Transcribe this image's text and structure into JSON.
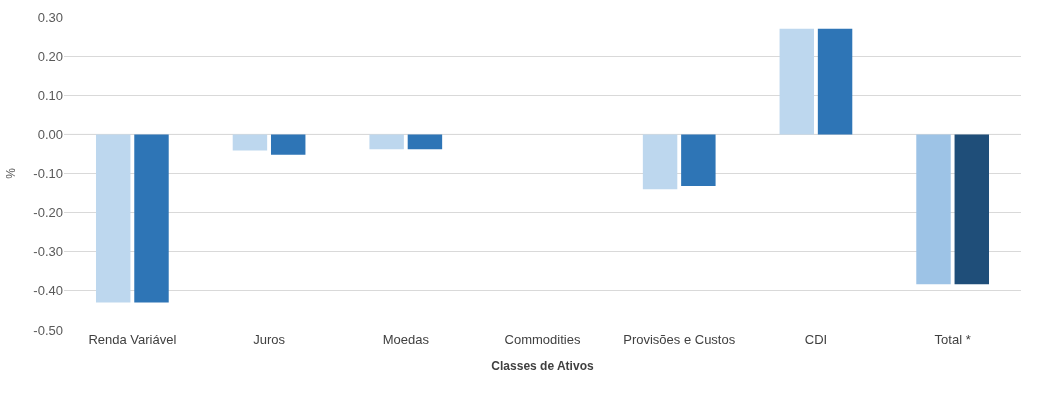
{
  "chart_data": {
    "type": "bar",
    "xlabel": "Classes de Ativos",
    "ylabel": "%",
    "categories": [
      "Renda Variável",
      "Juros",
      "Moedas",
      "Commodities",
      "Provisões e Custos",
      "CDI",
      "Total *"
    ],
    "series": [
      {
        "colors": [
          "#bdd7ee",
          "#bdd7ee",
          "#bdd7ee",
          "#bdd7ee",
          "#bdd7ee",
          "#bdd7ee",
          "#9dc3e6"
        ],
        "values": [
          -0.43,
          -0.041,
          -0.038,
          0,
          -0.14,
          0.27,
          -0.383
        ]
      },
      {
        "colors": [
          "#2e75b6",
          "#2e75b6",
          "#2e75b6",
          "#2e75b6",
          "#2e75b6",
          "#2e75b6",
          "#1f4e79"
        ],
        "values": [
          -0.43,
          -0.052,
          -0.038,
          0,
          -0.132,
          0.27,
          -0.383
        ]
      }
    ],
    "ylim": [
      -0.5,
      0.3
    ],
    "yticks": [
      {
        "value": -0.5,
        "label": "-0.50"
      },
      {
        "value": -0.4,
        "label": "-0.40"
      },
      {
        "value": -0.3,
        "label": "-0.30"
      },
      {
        "value": -0.2,
        "label": "-0.20"
      },
      {
        "value": -0.1,
        "label": "-0.10"
      },
      {
        "value": 0,
        "label": "0.00"
      },
      {
        "value": 0.1,
        "label": "0.10"
      },
      {
        "value": 0.2,
        "label": "0.20"
      },
      {
        "value": 0.3,
        "label": "0.30"
      }
    ],
    "grid": "y"
  }
}
